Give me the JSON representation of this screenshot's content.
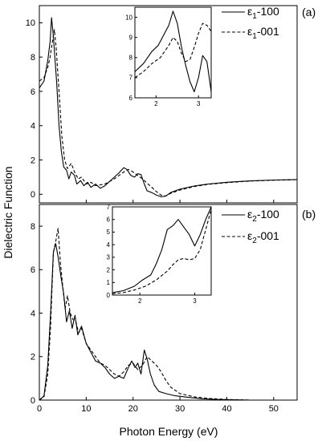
{
  "figure": {
    "ylabel": "Dielectric Function",
    "xlabel": "Photon Energy (eV)"
  },
  "chart_data": [
    {
      "type": "line",
      "panel_label": "(a)",
      "xlim": [
        0,
        55
      ],
      "ylim": [
        -0.5,
        11
      ],
      "xticks": [
        0,
        10,
        20,
        30,
        40,
        50
      ],
      "yticks": [
        0,
        2,
        4,
        6,
        8,
        10
      ],
      "legend_position": "top-right",
      "series": [
        {
          "name": "ε1-100",
          "style": "solid",
          "x": [
            0,
            1.0,
            1.8,
            2.3,
            2.6,
            3.0,
            3.3,
            3.7,
            4.2,
            4.7,
            5.2,
            5.8,
            6.3,
            6.8,
            7.5,
            8.0,
            8.8,
            9.5,
            10.3,
            11,
            12,
            13,
            14,
            15,
            16,
            17,
            18,
            18.7,
            19.5,
            20.3,
            21,
            21.7,
            22.4,
            23,
            24,
            25,
            26,
            27,
            28,
            30,
            33,
            36,
            40,
            45,
            50,
            55
          ],
          "y": [
            6.2,
            6.6,
            7.8,
            8.9,
            10.3,
            9.2,
            8.0,
            6.5,
            4.0,
            2.5,
            1.6,
            1.4,
            0.9,
            1.3,
            1.1,
            0.6,
            0.8,
            0.5,
            0.7,
            0.4,
            0.6,
            0.35,
            0.5,
            0.75,
            1.0,
            1.25,
            1.55,
            1.45,
            1.1,
            1.0,
            1.2,
            1.15,
            0.6,
            0.2,
            0.1,
            -0.05,
            -0.15,
            -0.1,
            0.1,
            0.3,
            0.48,
            0.6,
            0.7,
            0.78,
            0.83,
            0.86
          ]
        },
        {
          "name": "ε1-001",
          "style": "dashed",
          "x": [
            0,
            1.0,
            1.8,
            2.3,
            2.8,
            3.2,
            3.6,
            4.2,
            4.8,
            5.4,
            6.0,
            6.8,
            7.5,
            8.3,
            9.0,
            10,
            11,
            12,
            13,
            14,
            15,
            16,
            17,
            18,
            19,
            20,
            21,
            22,
            23,
            24,
            25,
            26,
            27,
            28,
            30,
            33,
            36,
            40,
            45,
            50,
            55
          ],
          "y": [
            6.6,
            6.8,
            7.4,
            8.0,
            8.9,
            9.6,
            8.5,
            6.0,
            3.4,
            2.0,
            1.5,
            1.8,
            1.3,
            0.9,
            1.0,
            0.6,
            0.7,
            0.5,
            0.55,
            0.6,
            0.75,
            0.9,
            1.1,
            1.3,
            1.45,
            1.3,
            1.1,
            0.9,
            0.65,
            0.4,
            0.15,
            -0.05,
            -0.1,
            0.05,
            0.25,
            0.45,
            0.58,
            0.68,
            0.77,
            0.82,
            0.85
          ]
        }
      ],
      "inset": {
        "xlim": [
          1.5,
          3.3
        ],
        "ylim": [
          6,
          10.5
        ],
        "xticks": [
          2,
          3
        ],
        "yticks": [
          6,
          7,
          8,
          9,
          10
        ],
        "series": [
          {
            "name": "ε1-100",
            "style": "solid",
            "x": [
              1.5,
              1.7,
              1.9,
              2.05,
              2.2,
              2.3,
              2.4,
              2.5,
              2.6,
              2.7,
              2.8,
              2.9,
              3.0,
              3.1,
              3.2,
              3.3
            ],
            "y": [
              7.3,
              7.7,
              8.3,
              8.6,
              9.2,
              9.6,
              10.3,
              9.7,
              8.5,
              7.6,
              6.8,
              6.3,
              7.0,
              8.1,
              7.8,
              6.3
            ]
          },
          {
            "name": "ε1-001",
            "style": "dashed",
            "x": [
              1.5,
              1.7,
              1.9,
              2.1,
              2.3,
              2.4,
              2.5,
              2.6,
              2.7,
              2.8,
              2.9,
              3.0,
              3.1,
              3.2,
              3.3
            ],
            "y": [
              7.0,
              7.3,
              7.7,
              8.0,
              8.6,
              9.0,
              8.8,
              8.2,
              7.8,
              7.9,
              8.5,
              9.2,
              9.7,
              9.6,
              9.3
            ]
          }
        ]
      }
    },
    {
      "type": "line",
      "panel_label": "(b)",
      "xlim": [
        0,
        55
      ],
      "ylim": [
        0,
        9
      ],
      "xticks": [
        0,
        10,
        20,
        30,
        40,
        50
      ],
      "yticks": [
        0,
        2,
        4,
        6,
        8
      ],
      "legend_position": "top-right",
      "series": [
        {
          "name": "ε2-100",
          "style": "solid",
          "x": [
            0,
            1.0,
            1.8,
            2.4,
            3.0,
            3.5,
            4.0,
            4.6,
            5.2,
            5.8,
            6.4,
            7.0,
            7.6,
            8.2,
            9.0,
            10,
            11,
            12,
            13,
            14,
            15,
            16,
            17,
            18,
            19,
            19.7,
            20.4,
            21,
            21.7,
            22.4,
            23,
            23.7,
            24.5,
            25.5,
            27,
            29,
            32,
            35,
            38,
            42,
            45
          ],
          "y": [
            0,
            0.2,
            1.6,
            4.0,
            6.8,
            7.2,
            6.6,
            5.7,
            4.9,
            3.6,
            4.1,
            3.3,
            3.9,
            3.0,
            3.4,
            2.6,
            2.2,
            1.8,
            1.7,
            1.5,
            1.2,
            1.0,
            1.1,
            1.0,
            1.5,
            1.8,
            1.5,
            1.7,
            1.2,
            2.3,
            1.9,
            1.2,
            0.7,
            0.4,
            0.3,
            0.2,
            0.12,
            0.06,
            0.03,
            0.01,
            0
          ]
        },
        {
          "name": "ε2-001",
          "style": "dashed",
          "x": [
            0,
            1.0,
            1.8,
            2.4,
            3.0,
            3.5,
            4.0,
            4.5,
            5.0,
            5.5,
            6.0,
            6.6,
            7.2,
            7.8,
            8.4,
            9.0,
            10,
            11,
            12,
            13,
            14,
            15,
            16,
            17,
            18,
            19,
            20,
            21,
            22,
            23,
            24,
            25,
            26,
            27,
            28,
            30,
            33,
            36,
            40,
            45
          ],
          "y": [
            0,
            0.15,
            1.2,
            3.4,
            6.8,
            7.3,
            7.9,
            6.3,
            5.2,
            4.2,
            4.8,
            4.0,
            3.7,
            3.6,
            3.1,
            3.3,
            2.6,
            2.3,
            2.0,
            1.7,
            1.6,
            1.4,
            1.2,
            1.1,
            1.3,
            1.6,
            1.7,
            1.4,
            1.6,
            2.0,
            1.8,
            1.6,
            1.3,
            0.9,
            0.6,
            0.3,
            0.15,
            0.08,
            0.03,
            0
          ]
        }
      ],
      "inset": {
        "xlim": [
          1.5,
          3.3
        ],
        "ylim": [
          0,
          7
        ],
        "xticks": [
          2,
          3
        ],
        "yticks": [
          0,
          1,
          2,
          3,
          4,
          5,
          6,
          7
        ],
        "series": [
          {
            "name": "ε2-100",
            "style": "solid",
            "x": [
              1.5,
              1.7,
              1.9,
              2.05,
              2.2,
              2.3,
              2.4,
              2.5,
              2.6,
              2.7,
              2.8,
              2.9,
              3.0,
              3.1,
              3.2,
              3.3
            ],
            "y": [
              0.2,
              0.35,
              0.7,
              1.2,
              1.6,
              2.5,
              3.6,
              5.2,
              5.5,
              6.0,
              5.4,
              4.8,
              3.9,
              4.8,
              6.0,
              7.0
            ]
          },
          {
            "name": "ε2-001",
            "style": "dashed",
            "x": [
              1.5,
              1.7,
              1.9,
              2.1,
              2.3,
              2.5,
              2.6,
              2.7,
              2.8,
              2.9,
              3.0,
              3.1,
              3.2,
              3.3
            ],
            "y": [
              0.1,
              0.2,
              0.4,
              0.7,
              1.2,
              1.9,
              2.4,
              2.8,
              2.9,
              2.8,
              2.9,
              3.6,
              5.2,
              6.8
            ]
          }
        ]
      }
    }
  ]
}
